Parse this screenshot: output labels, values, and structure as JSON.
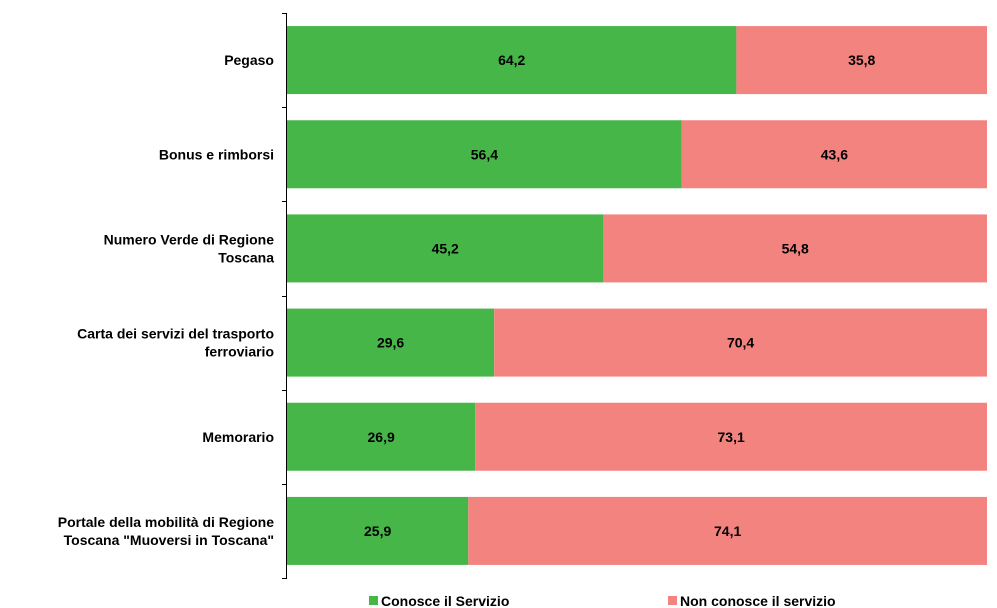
{
  "chart_data": {
    "type": "bar",
    "orientation": "horizontal",
    "stacked": true,
    "categories": [
      "Pegaso",
      "Bonus e rimborsi",
      "Numero Verde di Regione Toscana",
      "Carta dei servizi del trasporto ferroviario",
      "Memorario",
      "Portale della mobilità di Regione Toscana \"Muoversi in Toscana\""
    ],
    "category_lines": [
      [
        "Pegaso"
      ],
      [
        "Bonus e rimborsi"
      ],
      [
        "Numero Verde di Regione",
        "Toscana"
      ],
      [
        "Carta dei servizi del trasporto",
        "ferroviario"
      ],
      [
        "Memorario"
      ],
      [
        "Portale della mobilità di Regione",
        "Toscana \"Muoversi in Toscana\""
      ]
    ],
    "series": [
      {
        "name": "Conosce il Servizio",
        "color": "#46b649",
        "values": [
          64.2,
          56.4,
          45.2,
          29.6,
          26.9,
          25.9
        ],
        "labels": [
          "64,2",
          "56,4",
          "45,2",
          "29,6",
          "26,9",
          "25,9"
        ]
      },
      {
        "name": "Non conosce il servizio",
        "color": "#f3837f",
        "values": [
          35.8,
          43.6,
          54.8,
          70.4,
          73.1,
          74.1
        ],
        "labels": [
          "35,8",
          "43,6",
          "54,8",
          "70,4",
          "73,1",
          "74,1"
        ]
      }
    ],
    "xlim": [
      0,
      100
    ],
    "grid": false,
    "legend_position": "bottom"
  }
}
